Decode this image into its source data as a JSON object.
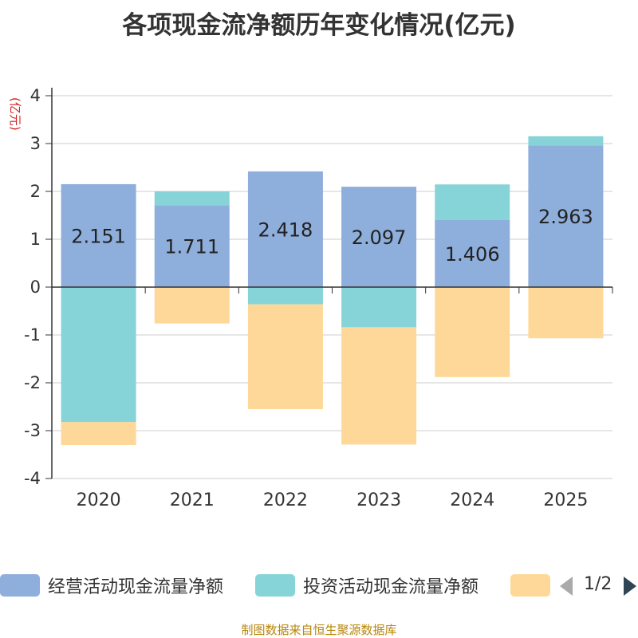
{
  "chart_data": {
    "type": "bar",
    "stacked": true,
    "title": "各项现金流净额历年变化情况(亿元)",
    "ylabel": "(亿元)",
    "xlabel": "",
    "ylim": [
      -4,
      4
    ],
    "yticks": [
      -4,
      -3,
      -2,
      -1,
      0,
      1,
      2,
      3,
      4
    ],
    "categories": [
      "2020",
      "2021",
      "2022",
      "2023",
      "2024",
      "2025"
    ],
    "series": [
      {
        "name": "经营活动现金流量净额",
        "color": "#8eaedb",
        "values": [
          2.151,
          1.711,
          2.418,
          2.097,
          1.406,
          2.963
        ],
        "labels": [
          "2.151",
          "1.711",
          "2.418",
          "2.097",
          "1.406",
          "2.963"
        ]
      },
      {
        "name": "投资活动现金流量净额",
        "color": "#87d4d8",
        "values": [
          -2.82,
          0.29,
          -0.36,
          -0.84,
          0.74,
          0.19
        ]
      },
      {
        "name": "",
        "color": "#fed898",
        "values": [
          -0.48,
          -0.76,
          -2.19,
          -2.45,
          -1.88,
          -1.07
        ]
      }
    ]
  },
  "legend": {
    "items": [
      {
        "label": "经营活动现金流量净额",
        "color": "#8eaedb"
      },
      {
        "label": "投资活动现金流量净额",
        "color": "#87d4d8"
      },
      {
        "label": "",
        "color": "#fed898"
      }
    ],
    "page": "1/2"
  },
  "source": "制图数据来自恒生聚源数据库"
}
